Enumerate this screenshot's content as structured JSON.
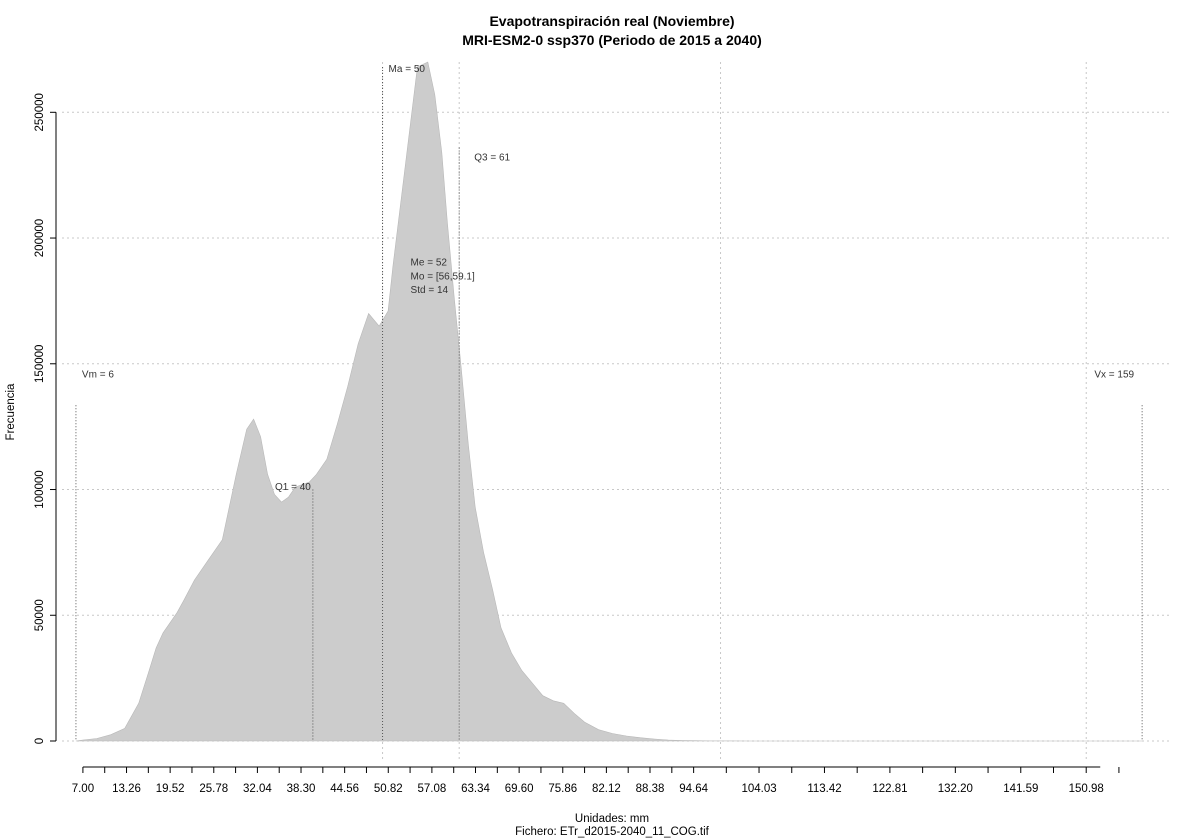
{
  "chart_data": {
    "type": "area",
    "title": "Evapotranspiración real (Noviembre)",
    "subtitle": "MRI-ESM2-0 ssp370 (Periodo de 2015 a 2040)",
    "xlabel": "Unidades: mm",
    "ylabel": "Frecuencia",
    "footer": "Fichero: ETr_d2015-2040_11_COG.tif",
    "xlim": [
      4,
      163
    ],
    "ylim": [
      0,
      270000
    ],
    "x_ticks": [
      "7.00",
      "13.26",
      "19.52",
      "25.78",
      "32.04",
      "38.30",
      "44.56",
      "50.82",
      "57.08",
      "63.34",
      "69.60",
      "75.86",
      "82.12",
      "88.38",
      "94.64",
      "104.03",
      "113.42",
      "122.81",
      "132.20",
      "141.59",
      "150.98"
    ],
    "y_ticks": [
      0,
      50000,
      100000,
      150000,
      200000,
      250000
    ],
    "x_grid": [
      50,
      61,
      98.5,
      150.98
    ],
    "fill_color": "#cccccc",
    "grid": true,
    "x": [
      6,
      7,
      9,
      11,
      13,
      15,
      16.5,
      17.5,
      18.5,
      19.5,
      20.5,
      21.5,
      23,
      25,
      27,
      29,
      30.5,
      31.5,
      32.5,
      33.5,
      34.5,
      35.5,
      36.5,
      37.5,
      38.5,
      39.5,
      40.5,
      42,
      43.5,
      45,
      46.5,
      48,
      49.5,
      50.8,
      51.5,
      53.5,
      55,
      56.5,
      57.5,
      58.5,
      59.3,
      60.3,
      61.3,
      62.3,
      63.3,
      64.5,
      65.8,
      67,
      68.5,
      70,
      71.5,
      73,
      74.5,
      76,
      77.5,
      79,
      81,
      83,
      85,
      87,
      89,
      91,
      93,
      95,
      97,
      100,
      103,
      106,
      110,
      120,
      140,
      159
    ],
    "y": [
      0,
      400,
      1000,
      2500,
      5000,
      15000,
      28000,
      37000,
      43000,
      47000,
      51000,
      56000,
      64000,
      72000,
      80000,
      106000,
      124000,
      128000,
      121000,
      106000,
      98000,
      95000,
      97000,
      101000,
      102000,
      103000,
      106000,
      112000,
      126000,
      141000,
      158000,
      170000,
      165000,
      171000,
      189000,
      234000,
      268000,
      270000,
      257000,
      234000,
      206000,
      176000,
      148000,
      118000,
      93000,
      75000,
      60000,
      45000,
      35000,
      28000,
      23000,
      18000,
      16000,
      15000,
      11000,
      7500,
      4500,
      3000,
      2000,
      1300,
      800,
      400,
      200,
      100,
      50,
      20,
      10,
      0,
      0,
      0,
      0,
      0
    ],
    "annotations": [
      {
        "label": "Vm = 6",
        "x": 6,
        "y_frac": 0.535,
        "line_top": 133500
      },
      {
        "label": "Q1 = 40",
        "x": 40,
        "y_frac": 0.37,
        "line_top": 100000
      },
      {
        "label": "Ma = 50",
        "x": 50,
        "y_frac": 0.985,
        "line_top": 268000
      },
      {
        "label": "Q3 = 61",
        "x": 61,
        "y_frac": 0.855,
        "line_top": 236000
      },
      {
        "label": "Me = 52",
        "x": 52,
        "y_frac": 0.7
      },
      {
        "label": "Mo = [56,59.1]",
        "x": 52,
        "y_frac": 0.68
      },
      {
        "label": "Std = 14",
        "x": 52,
        "y_frac": 0.66
      },
      {
        "label": "Vx = 159",
        "x": 159,
        "y_frac": 0.535,
        "line_top": 133500
      }
    ]
  }
}
